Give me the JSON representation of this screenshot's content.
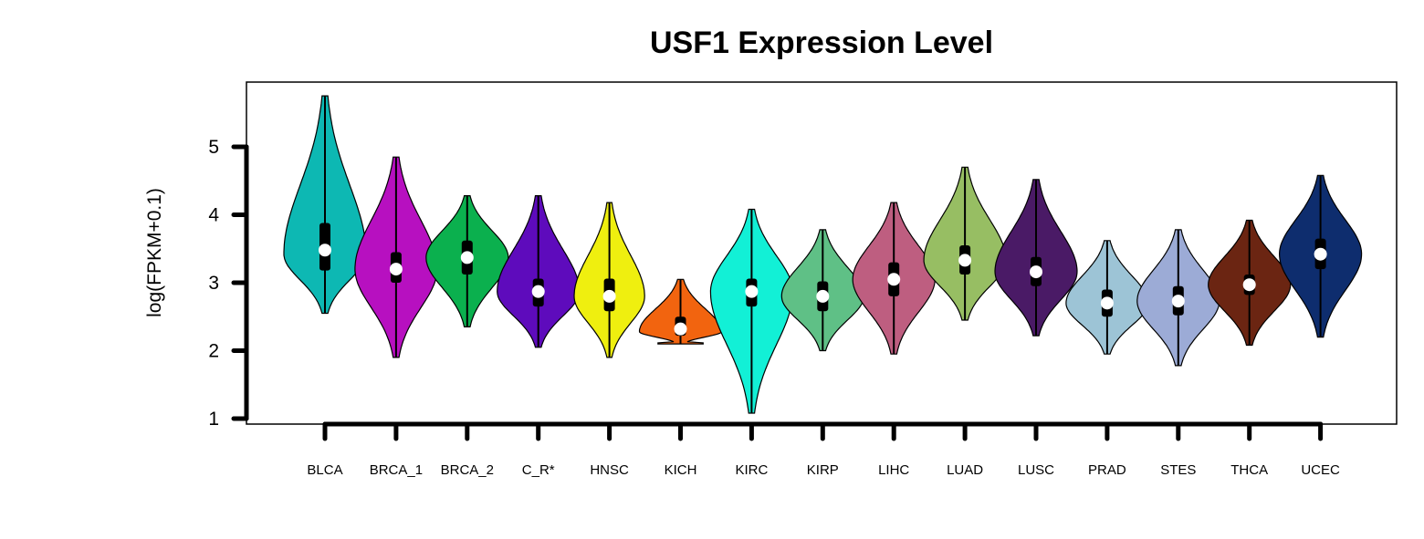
{
  "chart_data": {
    "type": "violin",
    "title": "USF1 Expression Level",
    "xlabel": "",
    "ylabel": "log(FPKM+0.1)",
    "ylim": [
      1,
      5.8
    ],
    "yticks": [
      1,
      2,
      3,
      4,
      5
    ],
    "grid": false,
    "legend": "none",
    "categories": [
      "BLCA",
      "BRCA_1",
      "BRCA_2",
      "C_R*",
      "HNSC",
      "KICH",
      "KIRC",
      "KIRP",
      "LIHC",
      "LUAD",
      "LUSC",
      "PRAD",
      "STES",
      "THCA",
      "UCEC"
    ],
    "colors": [
      "#0DB8B3",
      "#B710C0",
      "#0BB04E",
      "#5E0BBC",
      "#EFEF0F",
      "#F2640F",
      "#12F0D6",
      "#5FC086",
      "#BE5E80",
      "#97BE63",
      "#4A1A66",
      "#9DC4D6",
      "#9CABD6",
      "#6B2512",
      "#0E2D6E"
    ],
    "violins": [
      {
        "min": 2.55,
        "max": 5.75,
        "q1": 3.18,
        "median": 3.48,
        "q3": 3.88,
        "peak": 3.42,
        "half_width": 0.42
      },
      {
        "min": 1.9,
        "max": 4.85,
        "q1": 3.0,
        "median": 3.2,
        "q3": 3.45,
        "peak": 3.2,
        "half_width": 0.42
      },
      {
        "min": 2.35,
        "max": 4.28,
        "q1": 3.12,
        "median": 3.37,
        "q3": 3.62,
        "peak": 3.37,
        "half_width": 0.42
      },
      {
        "min": 2.05,
        "max": 4.28,
        "q1": 2.65,
        "median": 2.87,
        "q3": 3.06,
        "peak": 2.87,
        "half_width": 0.42
      },
      {
        "min": 1.9,
        "max": 4.18,
        "q1": 2.58,
        "median": 2.8,
        "q3": 3.06,
        "peak": 2.8,
        "half_width": 0.36
      },
      {
        "min": 2.1,
        "max": 3.05,
        "q1": 2.22,
        "median": 2.32,
        "q3": 2.5,
        "peak": 2.28,
        "half_width": 0.42
      },
      {
        "min": 1.08,
        "max": 4.08,
        "q1": 2.65,
        "median": 2.87,
        "q3": 3.06,
        "peak": 2.87,
        "half_width": 0.42
      },
      {
        "min": 2.0,
        "max": 3.78,
        "q1": 2.58,
        "median": 2.8,
        "q3": 3.02,
        "peak": 2.8,
        "half_width": 0.42
      },
      {
        "min": 1.95,
        "max": 4.18,
        "q1": 2.8,
        "median": 3.05,
        "q3": 3.3,
        "peak": 3.05,
        "half_width": 0.42
      },
      {
        "min": 2.45,
        "max": 4.7,
        "q1": 3.12,
        "median": 3.33,
        "q3": 3.55,
        "peak": 3.33,
        "half_width": 0.42
      },
      {
        "min": 2.22,
        "max": 4.52,
        "q1": 2.95,
        "median": 3.16,
        "q3": 3.38,
        "peak": 3.16,
        "half_width": 0.42
      },
      {
        "min": 1.95,
        "max": 3.62,
        "q1": 2.5,
        "median": 2.7,
        "q3": 2.9,
        "peak": 2.7,
        "half_width": 0.42
      },
      {
        "min": 1.78,
        "max": 3.78,
        "q1": 2.52,
        "median": 2.73,
        "q3": 2.95,
        "peak": 2.73,
        "half_width": 0.42
      },
      {
        "min": 2.08,
        "max": 3.92,
        "q1": 2.82,
        "median": 2.97,
        "q3": 3.12,
        "peak": 2.97,
        "half_width": 0.42
      },
      {
        "min": 2.2,
        "max": 4.58,
        "q1": 3.2,
        "median": 3.42,
        "q3": 3.65,
        "peak": 3.42,
        "half_width": 0.42
      }
    ]
  }
}
